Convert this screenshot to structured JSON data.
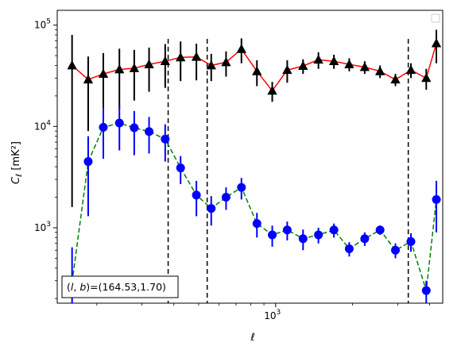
{
  "chart_data": {
    "type": "scatter",
    "xlabel": "ℓ",
    "ylabel": "C_ℓ  [mK²]",
    "xscale": "log",
    "yscale": "log",
    "xlim": [
      140,
      4500
    ],
    "ylim": [
      180,
      140000
    ],
    "x_major_tick": {
      "value": 1000,
      "base": "10",
      "exponent": "3"
    },
    "y_major_ticks": [
      {
        "value": 1000,
        "base": "10",
        "exponent": "3"
      },
      {
        "value": 10000,
        "base": "10",
        "exponent": "4"
      },
      {
        "value": 100000,
        "base": "10",
        "exponent": "5"
      }
    ],
    "vertical_lines": [
      380,
      540,
      3300
    ],
    "annotation": {
      "text": "(l, b)=(164.53,1.70)",
      "position": "bottom-left"
    },
    "legend": {
      "position": "top-right",
      "entries": []
    },
    "x": [
      160,
      185,
      212,
      245,
      280,
      320,
      370,
      425,
      490,
      560,
      640,
      735,
      845,
      970,
      1110,
      1280,
      1470,
      1690,
      1940,
      2230,
      2560,
      2940,
      3380,
      3880,
      4250
    ],
    "series": [
      {
        "color": "#ff0000",
        "marker": "triangle",
        "marker_color": "#000000",
        "errorbar_color": "#000000",
        "linestyle": "solid",
        "values": [
          40000,
          29000,
          33000,
          36500,
          37500,
          41000,
          44000,
          48000,
          48500,
          40000,
          43000,
          58000,
          35000,
          22500,
          36000,
          39500,
          45500,
          44000,
          41000,
          38500,
          35000,
          29000,
          36000,
          30000,
          66000
        ],
        "err_low": [
          38400,
          20000,
          20000,
          21500,
          19500,
          19000,
          20000,
          20000,
          20000,
          12000,
          12000,
          16000,
          10000,
          5000,
          9000,
          6500,
          8500,
          7000,
          6000,
          5500,
          5000,
          4000,
          6000,
          7000,
          24000
        ],
        "err_high": [
          40000,
          20000,
          20000,
          22000,
          19500,
          19000,
          21000,
          21000,
          17000,
          12000,
          12000,
          16000,
          10000,
          5000,
          9000,
          6500,
          8500,
          7000,
          6000,
          5500,
          5000,
          4000,
          6000,
          7000,
          24000
        ]
      },
      {
        "color": "#008000",
        "marker": "circle",
        "marker_color": "#0000ff",
        "errorbar_color": "#0000ff",
        "linestyle": "dashed",
        "values": [
          290,
          4500,
          9800,
          10800,
          9700,
          8900,
          7500,
          3900,
          2100,
          1550,
          2000,
          2500,
          1100,
          850,
          950,
          780,
          850,
          950,
          620,
          780,
          950,
          600,
          730,
          240,
          1900
        ],
        "err_low": [
          190,
          3200,
          5000,
          5000,
          4500,
          3500,
          3000,
          1200,
          800,
          500,
          500,
          600,
          300,
          200,
          200,
          180,
          150,
          150,
          100,
          120,
          100,
          100,
          150,
          60,
          1000
        ],
        "err_high": [
          350,
          3500,
          5500,
          5200,
          4500,
          3500,
          3000,
          1200,
          800,
          500,
          500,
          600,
          300,
          200,
          200,
          180,
          150,
          150,
          100,
          120,
          100,
          100,
          150,
          60,
          1000
        ]
      }
    ]
  }
}
